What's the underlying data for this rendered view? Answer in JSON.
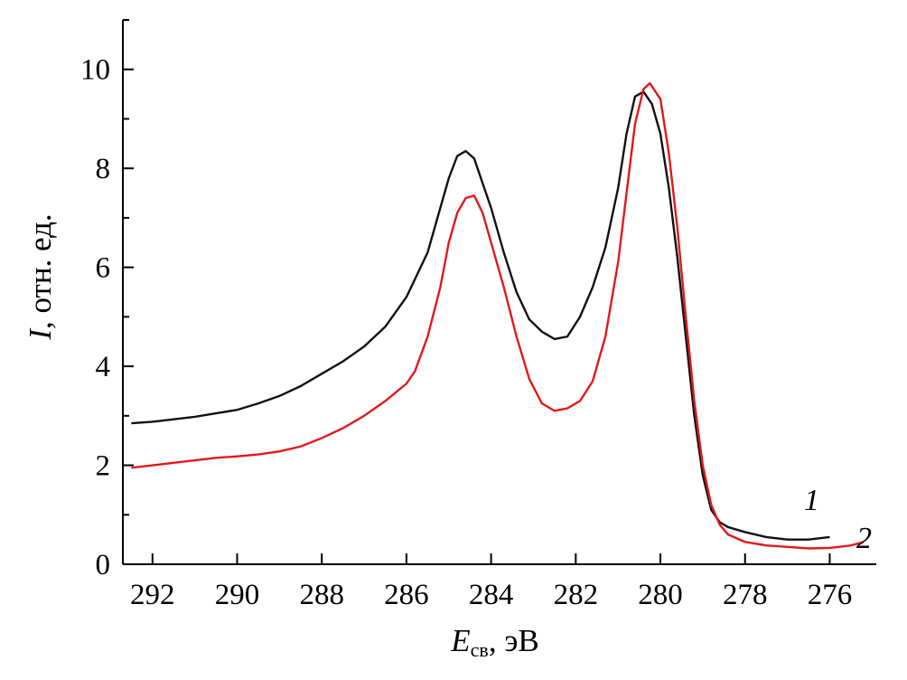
{
  "chart_data": {
    "type": "line",
    "xlabel": {
      "symbol": "E",
      "subscript": "св",
      "rest": ", эВ"
    },
    "ylabel": {
      "symbol": "I",
      "rest": ", отн. ед."
    },
    "xlim": [
      292.7,
      274.9
    ],
    "ylim": [
      0,
      11
    ],
    "x_ticks": [
      292,
      290,
      288,
      286,
      284,
      282,
      280,
      278,
      276
    ],
    "y_ticks": [
      0,
      2,
      4,
      6,
      8,
      10
    ],
    "x_tick_labels": [
      "292",
      "290",
      "288",
      "286",
      "284",
      "282",
      "280",
      "278",
      "276"
    ],
    "y_tick_labels": [
      "0",
      "2",
      "4",
      "6",
      "8",
      "10"
    ],
    "grid": false,
    "series": [
      {
        "name": "1",
        "color": "#111111",
        "points": [
          [
            292.5,
            2.85
          ],
          [
            292.0,
            2.88
          ],
          [
            291.5,
            2.93
          ],
          [
            291.0,
            2.98
          ],
          [
            290.5,
            3.05
          ],
          [
            290.0,
            3.12
          ],
          [
            289.5,
            3.25
          ],
          [
            289.0,
            3.4
          ],
          [
            288.5,
            3.6
          ],
          [
            288.0,
            3.85
          ],
          [
            287.5,
            4.1
          ],
          [
            287.0,
            4.4
          ],
          [
            286.5,
            4.8
          ],
          [
            286.0,
            5.4
          ],
          [
            285.5,
            6.3
          ],
          [
            285.2,
            7.2
          ],
          [
            285.0,
            7.8
          ],
          [
            284.8,
            8.25
          ],
          [
            284.6,
            8.35
          ],
          [
            284.4,
            8.2
          ],
          [
            284.2,
            7.7
          ],
          [
            284.0,
            7.2
          ],
          [
            283.7,
            6.3
          ],
          [
            283.4,
            5.5
          ],
          [
            283.1,
            4.95
          ],
          [
            282.8,
            4.7
          ],
          [
            282.5,
            4.55
          ],
          [
            282.2,
            4.6
          ],
          [
            281.9,
            5.0
          ],
          [
            281.6,
            5.6
          ],
          [
            281.3,
            6.4
          ],
          [
            281.0,
            7.6
          ],
          [
            280.8,
            8.7
          ],
          [
            280.6,
            9.45
          ],
          [
            280.4,
            9.55
          ],
          [
            280.2,
            9.3
          ],
          [
            280.0,
            8.7
          ],
          [
            279.8,
            7.6
          ],
          [
            279.6,
            6.2
          ],
          [
            279.4,
            4.6
          ],
          [
            279.2,
            3.0
          ],
          [
            279.0,
            1.8
          ],
          [
            278.8,
            1.1
          ],
          [
            278.6,
            0.85
          ],
          [
            278.4,
            0.75
          ],
          [
            278.0,
            0.65
          ],
          [
            277.5,
            0.55
          ],
          [
            277.0,
            0.5
          ],
          [
            276.5,
            0.5
          ],
          [
            276.0,
            0.55
          ]
        ]
      },
      {
        "name": "2",
        "color": "#e3181c",
        "points": [
          [
            292.5,
            1.95
          ],
          [
            292.0,
            2.0
          ],
          [
            291.5,
            2.05
          ],
          [
            291.0,
            2.1
          ],
          [
            290.5,
            2.15
          ],
          [
            290.0,
            2.18
          ],
          [
            289.5,
            2.22
          ],
          [
            289.0,
            2.28
          ],
          [
            288.5,
            2.38
          ],
          [
            288.0,
            2.55
          ],
          [
            287.5,
            2.75
          ],
          [
            287.0,
            3.0
          ],
          [
            286.5,
            3.3
          ],
          [
            286.0,
            3.65
          ],
          [
            285.8,
            3.9
          ],
          [
            285.5,
            4.6
          ],
          [
            285.2,
            5.6
          ],
          [
            285.0,
            6.5
          ],
          [
            284.8,
            7.1
          ],
          [
            284.6,
            7.4
          ],
          [
            284.4,
            7.45
          ],
          [
            284.2,
            7.1
          ],
          [
            284.0,
            6.5
          ],
          [
            283.7,
            5.6
          ],
          [
            283.4,
            4.6
          ],
          [
            283.1,
            3.75
          ],
          [
            282.8,
            3.25
          ],
          [
            282.5,
            3.1
          ],
          [
            282.2,
            3.15
          ],
          [
            281.9,
            3.3
          ],
          [
            281.6,
            3.7
          ],
          [
            281.3,
            4.6
          ],
          [
            281.0,
            6.1
          ],
          [
            280.8,
            7.5
          ],
          [
            280.6,
            8.9
          ],
          [
            280.4,
            9.6
          ],
          [
            280.25,
            9.72
          ],
          [
            280.0,
            9.4
          ],
          [
            279.8,
            8.3
          ],
          [
            279.6,
            6.8
          ],
          [
            279.4,
            5.0
          ],
          [
            279.2,
            3.3
          ],
          [
            279.0,
            2.0
          ],
          [
            278.8,
            1.2
          ],
          [
            278.6,
            0.8
          ],
          [
            278.4,
            0.6
          ],
          [
            278.0,
            0.45
          ],
          [
            277.5,
            0.38
          ],
          [
            277.0,
            0.35
          ],
          [
            276.5,
            0.32
          ],
          [
            276.0,
            0.33
          ],
          [
            275.5,
            0.38
          ],
          [
            275.2,
            0.45
          ]
        ]
      }
    ]
  }
}
